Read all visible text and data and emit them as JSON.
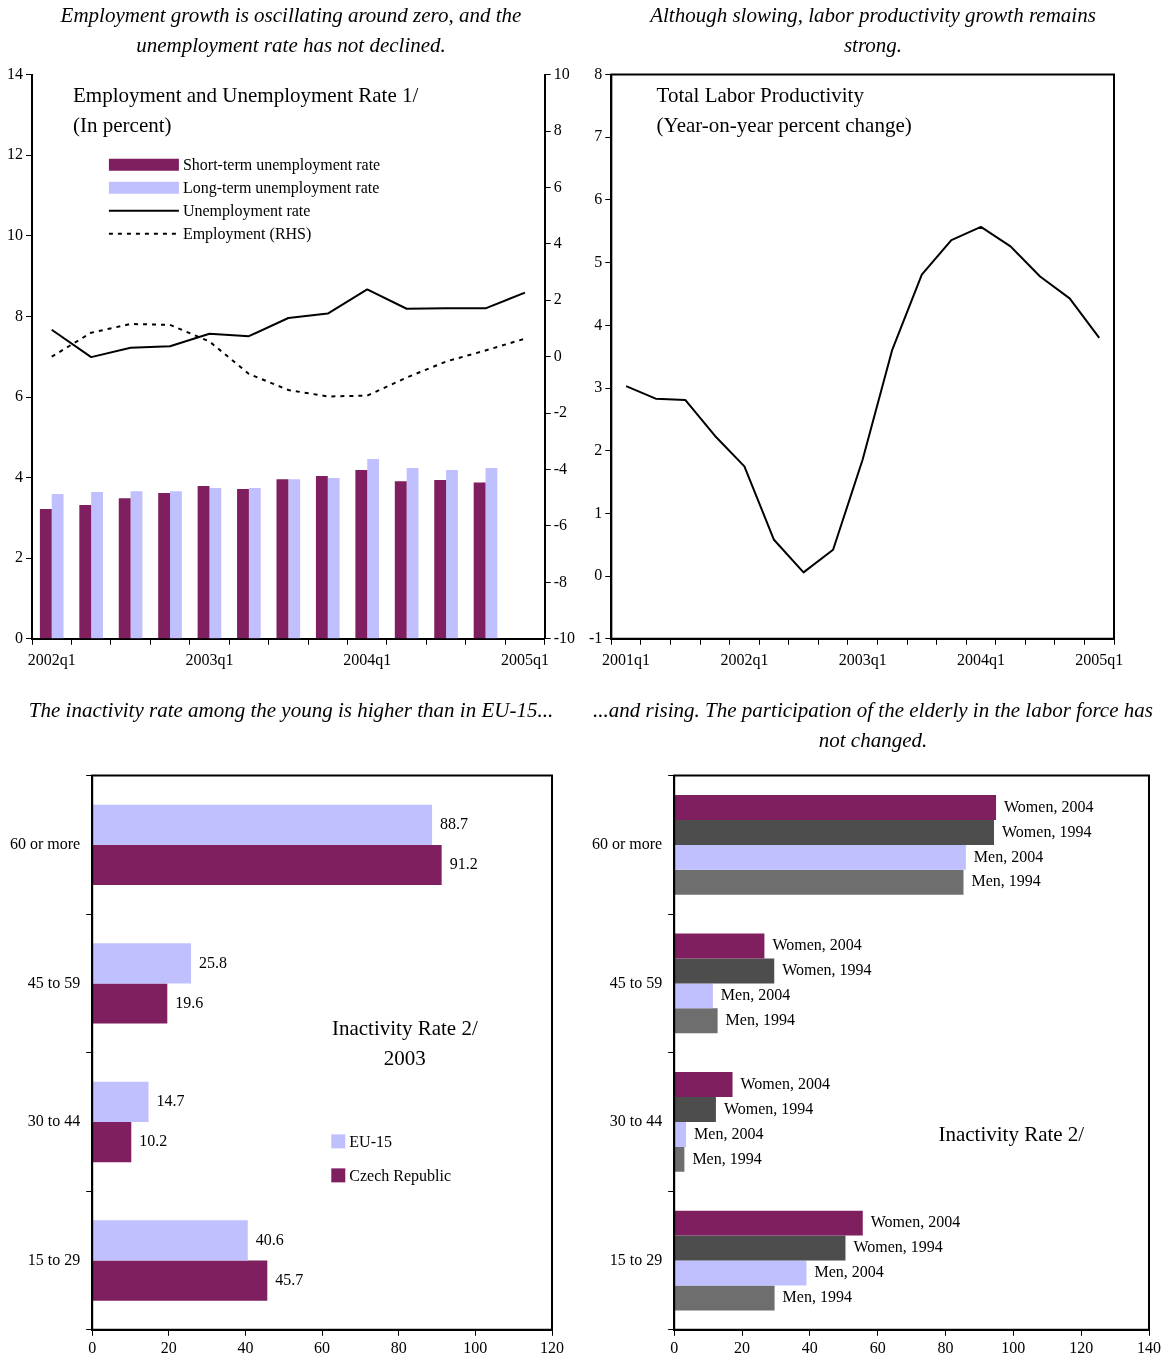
{
  "chart_data": [
    {
      "type": "bar",
      "title": "Employment growth is oscillating around zero, and the unemployment rate has not declined.",
      "subtitle": "Employment and Unemployment Rate 1/\n(In percent)",
      "categories": [
        "2002q1",
        null,
        null,
        null,
        "2003q1",
        null,
        null,
        null,
        "2004q1",
        null,
        null,
        null,
        "2005q1"
      ],
      "series": [
        {
          "name": "Short-term unemployment rate",
          "type": "bar",
          "color": "#7f1f5f",
          "values": [
            3.22,
            3.32,
            3.49,
            3.62,
            3.79,
            3.72,
            3.96,
            4.04,
            4.19,
            3.91,
            3.94,
            3.88,
            null
          ]
        },
        {
          "name": "Long-term unemployment rate",
          "type": "bar",
          "color": "#c0c0ff",
          "values": [
            3.59,
            3.64,
            3.66,
            3.66,
            3.74,
            3.74,
            3.96,
            3.99,
            4.46,
            4.24,
            4.19,
            4.24,
            null
          ]
        },
        {
          "name": "Unemployment rate",
          "type": "line",
          "color": "#000000",
          "line_style": "solid",
          "values": [
            7.67,
            6.99,
            7.22,
            7.26,
            7.57,
            7.51,
            7.96,
            8.07,
            8.67,
            8.19,
            8.2,
            8.2,
            8.59
          ]
        },
        {
          "name": "Employment (RHS)",
          "type": "line",
          "color": "#000000",
          "line_style": "dotted",
          "axis": "y2",
          "values": [
            0.0,
            0.85,
            1.16,
            1.13,
            0.54,
            -0.61,
            -1.18,
            -1.41,
            -1.38,
            -0.74,
            -0.17,
            0.22,
            0.64
          ]
        }
      ],
      "ylim": [
        0,
        14
      ],
      "yticks": [
        0,
        2,
        4,
        6,
        8,
        10,
        12,
        14
      ],
      "y2lim": [
        -10,
        10
      ],
      "y2ticks": [
        -10,
        -8,
        -6,
        -4,
        -2,
        0,
        2,
        4,
        6,
        8,
        10
      ],
      "grid": false,
      "legend": "top left"
    },
    {
      "type": "line",
      "title": "Although slowing, labor productivity growth remains strong.",
      "subtitle": "Total Labor Productivity\n(Year-on-year percent change)",
      "categories": [
        "2001q1",
        null,
        null,
        null,
        "2002q1",
        null,
        null,
        null,
        "2003q1",
        null,
        null,
        null,
        "2004q1",
        null,
        null,
        null,
        "2005q1"
      ],
      "series": [
        {
          "color": "#000000",
          "values": [
            3.03,
            2.83,
            2.81,
            2.24,
            1.75,
            0.58,
            0.06,
            0.42,
            1.86,
            3.61,
            4.81,
            5.36,
            5.57,
            5.26,
            4.78,
            4.43,
            3.8
          ]
        }
      ],
      "ylim": [
        -1,
        8
      ],
      "yticks": [
        -1,
        0,
        1,
        2,
        3,
        4,
        5,
        6,
        7,
        8
      ],
      "grid": false,
      "legend": false
    },
    {
      "type": "bar",
      "orientation": "horizontal",
      "title": "The inactivity rate among the young is higher than in EU-15...",
      "subtitle": "Inactivity Rate 2/\n2003",
      "categories": [
        "60 or more",
        "45 to 59",
        "30 to 44",
        "15 to 29"
      ],
      "series": [
        {
          "name": "EU-15",
          "color": "#c0c0ff",
          "values": [
            88.7,
            25.8,
            14.7,
            40.6
          ]
        },
        {
          "name": "Czech Republic",
          "color": "#7f1f5f",
          "values": [
            91.2,
            19.6,
            10.2,
            45.7
          ]
        }
      ],
      "xlim": [
        0,
        120
      ],
      "xticks": [
        0,
        20,
        40,
        60,
        80,
        100,
        120
      ],
      "grid": false,
      "legend": "right",
      "data_labels": true
    },
    {
      "type": "bar",
      "orientation": "horizontal",
      "title": "...and rising. The participation of the elderly in the labor force has not changed.",
      "subtitle": "Inactivity Rate 2/",
      "categories": [
        "60 or more",
        "45 to 59",
        "30 to 44",
        "15 to 29"
      ],
      "series": [
        {
          "name": "Women, 2004",
          "color": "#7f1f5f",
          "values": [
            94.9,
            26.6,
            17.2,
            55.6
          ]
        },
        {
          "name": "Women, 1994",
          "color": "#4d4d4d",
          "values": [
            94.3,
            29.5,
            12.3,
            50.5
          ]
        },
        {
          "name": "Men, 2004",
          "color": "#c0c0ff",
          "values": [
            86.0,
            11.4,
            3.5,
            39.0
          ]
        },
        {
          "name": "Men, 1994",
          "color": "#6e6e6e",
          "values": [
            85.3,
            12.8,
            3.0,
            29.6
          ]
        }
      ],
      "xlim": [
        0,
        140
      ],
      "xticks": [
        0,
        20,
        40,
        60,
        80,
        100,
        120,
        140
      ],
      "grid": false,
      "legend": false
    }
  ]
}
